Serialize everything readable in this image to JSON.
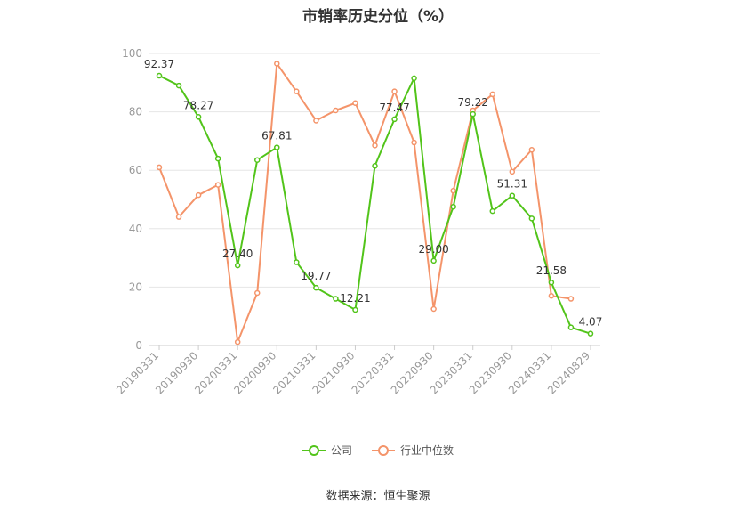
{
  "title": "市销率历史分位（%）",
  "source": "数据来源：恒生聚源",
  "colors": {
    "company": "#52c41a",
    "industry": "#f4946a"
  },
  "chart_data": {
    "type": "line",
    "title": "市销率历史分位（%）",
    "ylim": [
      0,
      100
    ],
    "yticks": [
      0,
      20,
      40,
      60,
      80,
      100
    ],
    "grid": true,
    "legend_position": "bottom",
    "xticklabels": [
      "20190331",
      "20190930",
      "20200331",
      "20200930",
      "20210331",
      "20210930",
      "20220331",
      "20220930",
      "20230331",
      "20230930",
      "20240331",
      "20240829"
    ],
    "x": [
      "20190331",
      "20190630",
      "20190930",
      "20191231",
      "20200331",
      "20200630",
      "20200930",
      "20201231",
      "20210331",
      "20210630",
      "20210930",
      "20211231",
      "20220331",
      "20220630",
      "20220930",
      "20221231",
      "20230331",
      "20230630",
      "20230930",
      "20231231",
      "20240331",
      "20240630",
      "20240829"
    ],
    "series": [
      {
        "name": "公司",
        "values": [
          92.37,
          89.0,
          78.27,
          64.0,
          27.4,
          63.5,
          67.81,
          28.5,
          19.77,
          16.0,
          12.21,
          61.5,
          77.47,
          91.5,
          29.0,
          47.5,
          79.22,
          46.0,
          51.31,
          43.5,
          21.58,
          6.2,
          4.07
        ],
        "labels": {
          "0": "92.37",
          "2": "78.27",
          "4": "27.40",
          "6": "67.81",
          "8": "19.77",
          "10": "12.21",
          "12": "77.47",
          "14": "29.00",
          "16": "79.22",
          "18": "51.31",
          "20": "21.58",
          "22": "4.07"
        }
      },
      {
        "name": "行业中位数",
        "values": [
          61.0,
          44.0,
          51.5,
          55.0,
          1.2,
          18.0,
          96.5,
          87.0,
          77.0,
          80.5,
          83.0,
          68.5,
          87.0,
          69.5,
          12.5,
          53.0,
          80.5,
          86.0,
          59.5,
          67.0,
          17.0,
          16.0,
          null
        ]
      }
    ]
  }
}
